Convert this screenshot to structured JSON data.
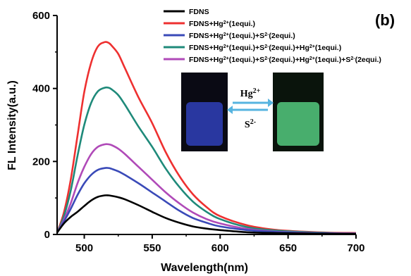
{
  "chart_data": {
    "type": "line",
    "panel_label": "(b)",
    "xlabel": "Wavelength(nm)",
    "ylabel": "FL Intensity(a.u.)",
    "xlim": [
      480,
      700
    ],
    "ylim": [
      0,
      600
    ],
    "xticks": [
      500,
      550,
      600,
      650,
      700
    ],
    "yticks": [
      0,
      200,
      400,
      600
    ],
    "grid": false,
    "legend_position": "top-right",
    "inset": {
      "top_label": "Hg2+",
      "bottom_label": "S2-",
      "left_vial_color": "#2f3fb8",
      "right_vial_color": "#4fbf78"
    },
    "series": [
      {
        "name": "FDNS",
        "color": "#000000",
        "x": [
          480,
          485,
          490,
          495,
          500,
          505,
          510,
          515,
          518,
          520,
          525,
          530,
          540,
          550,
          560,
          570,
          580,
          590,
          600,
          620,
          640,
          660,
          680,
          700
        ],
        "y": [
          5,
          30,
          48,
          62,
          78,
          93,
          103,
          107,
          107,
          106,
          102,
          96,
          80,
          62,
          45,
          32,
          22,
          16,
          12,
          6,
          4,
          3,
          2,
          2
        ]
      },
      {
        "name": "FDNS+Hg2+(1equi.)",
        "color": "#ee3030",
        "x": [
          480,
          485,
          490,
          495,
          500,
          505,
          510,
          515,
          518,
          520,
          525,
          530,
          540,
          550,
          560,
          570,
          580,
          590,
          600,
          620,
          640,
          660,
          680,
          700
        ],
        "y": [
          5,
          60,
          150,
          270,
          390,
          470,
          515,
          527,
          525,
          518,
          495,
          455,
          375,
          305,
          225,
          160,
          110,
          75,
          50,
          25,
          13,
          8,
          5,
          4
        ]
      },
      {
        "name": "FDNS+Hg2+(1equi.)+S2-(2equi.)",
        "color": "#3a4ab8",
        "x": [
          480,
          485,
          490,
          495,
          500,
          505,
          510,
          515,
          518,
          520,
          525,
          530,
          540,
          550,
          560,
          570,
          580,
          590,
          600,
          620,
          640,
          660,
          680,
          700
        ],
        "y": [
          5,
          35,
          70,
          108,
          140,
          163,
          177,
          182,
          182,
          180,
          173,
          163,
          140,
          115,
          90,
          65,
          45,
          32,
          22,
          12,
          7,
          4,
          3,
          2
        ]
      },
      {
        "name": "FDNS+Hg2+(1equi.)+S2-(2equi.)+Hg2+(1equi.)",
        "color": "#1f8a7a",
        "x": [
          480,
          485,
          490,
          495,
          500,
          505,
          510,
          515,
          518,
          520,
          525,
          530,
          540,
          550,
          560,
          570,
          580,
          590,
          600,
          620,
          640,
          660,
          680,
          700
        ],
        "y": [
          5,
          50,
          120,
          215,
          300,
          360,
          392,
          402,
          402,
          398,
          382,
          355,
          295,
          240,
          180,
          130,
          90,
          62,
          42,
          20,
          11,
          7,
          4,
          3
        ]
      },
      {
        "name": "FDNS+Hg2+(1equi.)+S2-(2equi.)+Hg2+(1equi.)+S2-(2equi.)",
        "color": "#b04ab8",
        "x": [
          480,
          485,
          490,
          495,
          500,
          505,
          510,
          515,
          518,
          520,
          525,
          530,
          540,
          550,
          560,
          570,
          580,
          590,
          600,
          620,
          640,
          660,
          680,
          700
        ],
        "y": [
          5,
          40,
          85,
          140,
          185,
          220,
          240,
          247,
          247,
          245,
          235,
          220,
          185,
          150,
          115,
          85,
          60,
          42,
          30,
          15,
          8,
          5,
          3,
          3
        ]
      }
    ]
  }
}
